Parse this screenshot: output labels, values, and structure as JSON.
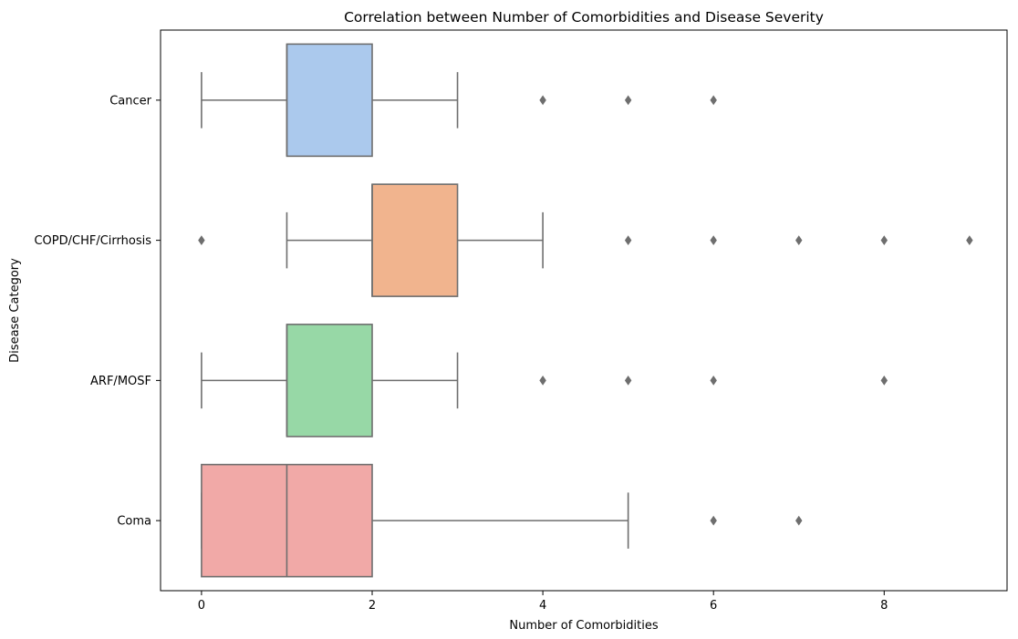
{
  "chart_data": {
    "type": "boxplot",
    "orientation": "horizontal",
    "title": "Correlation between Number of Comorbidities and Disease Severity",
    "xlabel": "Number of Comorbidities",
    "ylabel": "Disease Category",
    "xlim": [
      -0.48,
      9.44
    ],
    "xticks": [
      0,
      2,
      4,
      6,
      8
    ],
    "xtick_labels": [
      "0",
      "2",
      "4",
      "6",
      "8"
    ],
    "grid": false,
    "series": [
      {
        "category": "Cancer",
        "color": "#abc9ed",
        "whisker_low": 0,
        "q1": 1,
        "median": 1,
        "q3": 2,
        "whisker_high": 3,
        "outliers": [
          4,
          5,
          6
        ]
      },
      {
        "category": "COPD/CHF/Cirrhosis",
        "color": "#f1b48e",
        "whisker_low": 1,
        "q1": 2,
        "median": 2,
        "q3": 3,
        "whisker_high": 4,
        "outliers": [
          0,
          5,
          6,
          7,
          8,
          9
        ]
      },
      {
        "category": "ARF/MOSF",
        "color": "#97d8a6",
        "whisker_low": 0,
        "q1": 1,
        "median": 1,
        "q3": 2,
        "whisker_high": 3,
        "outliers": [
          4,
          5,
          6,
          8
        ]
      },
      {
        "category": "Coma",
        "color": "#f1a9a7",
        "whisker_low": 0,
        "q1": 0,
        "median": 1,
        "q3": 2,
        "whisker_high": 5,
        "outliers": [
          6,
          7
        ]
      }
    ],
    "line_color": "#6e6e6e"
  }
}
